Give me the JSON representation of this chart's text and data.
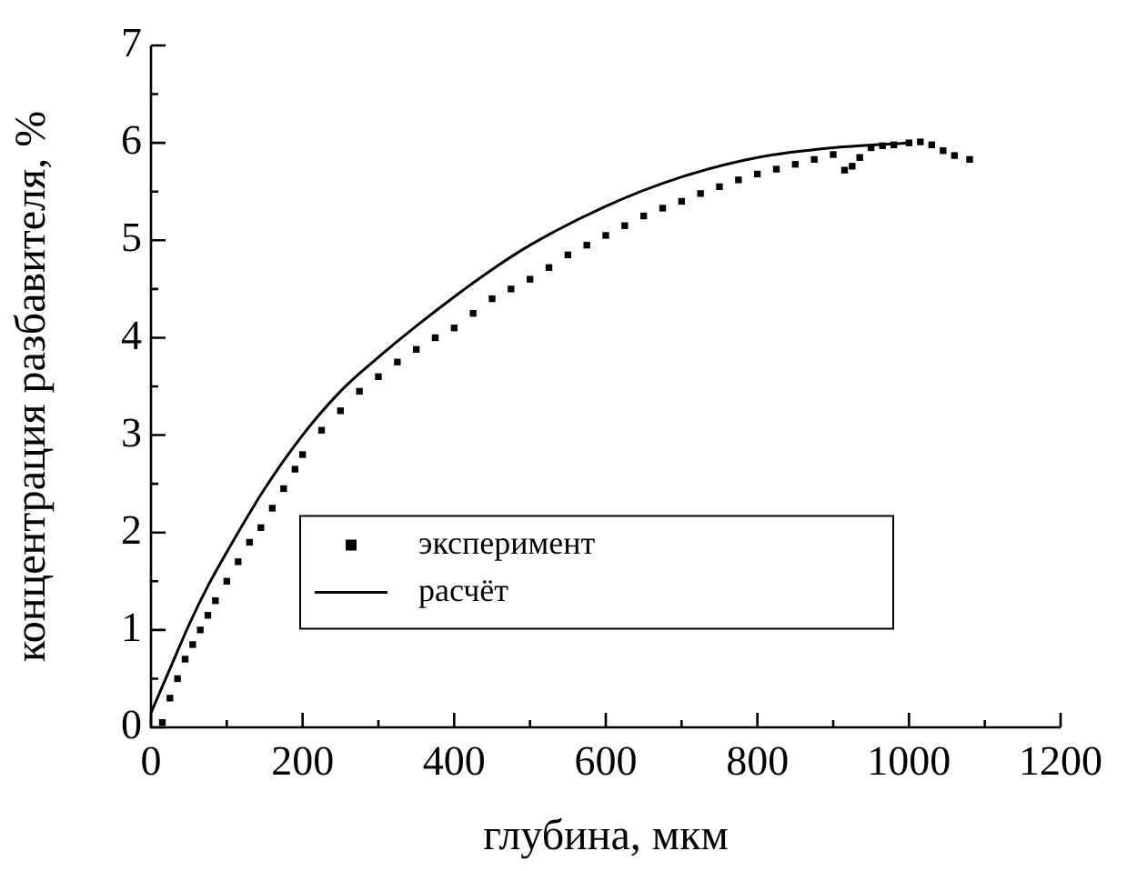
{
  "chart_data": {
    "type": "scatter",
    "xlabel": "глубина, мкм",
    "ylabel": "концентрация разбавителя, %",
    "xlim": [
      0,
      1200
    ],
    "ylim": [
      0,
      7
    ],
    "xticks": [
      0,
      200,
      400,
      600,
      800,
      1000,
      1200
    ],
    "yticks": [
      0,
      1,
      2,
      3,
      4,
      5,
      6,
      7
    ],
    "grid": false,
    "legend": "bottom",
    "series": [
      {
        "name": "эксперимент",
        "marker": "square",
        "color": "#000000",
        "x": [
          15,
          25,
          35,
          45,
          55,
          65,
          75,
          85,
          100,
          115,
          130,
          145,
          160,
          175,
          190,
          200,
          225,
          250,
          275,
          300,
          325,
          350,
          375,
          400,
          425,
          450,
          475,
          500,
          525,
          550,
          575,
          600,
          625,
          650,
          675,
          700,
          725,
          750,
          775,
          800,
          825,
          850,
          875,
          900,
          915,
          925,
          935,
          950,
          965,
          980,
          1000,
          1015,
          1030,
          1045,
          1060,
          1080
        ],
        "values": [
          0.05,
          0.3,
          0.5,
          0.7,
          0.85,
          1.0,
          1.15,
          1.3,
          1.5,
          1.7,
          1.9,
          2.05,
          2.25,
          2.45,
          2.65,
          2.8,
          3.05,
          3.25,
          3.45,
          3.6,
          3.75,
          3.88,
          4.0,
          4.1,
          4.25,
          4.4,
          4.5,
          4.6,
          4.72,
          4.85,
          4.95,
          5.05,
          5.15,
          5.25,
          5.33,
          5.4,
          5.48,
          5.55,
          5.62,
          5.68,
          5.73,
          5.78,
          5.83,
          5.88,
          5.72,
          5.76,
          5.85,
          5.95,
          5.97,
          5.98,
          6.0,
          6.01,
          5.98,
          5.92,
          5.87,
          5.83
        ]
      },
      {
        "name": "расчёт",
        "type": "line",
        "marker": "none",
        "line_style": "solid",
        "color": "#000000",
        "x": [
          0,
          25,
          50,
          75,
          100,
          150,
          200,
          250,
          300,
          350,
          400,
          450,
          500,
          600,
          700,
          800,
          900,
          1000
        ],
        "values": [
          0.15,
          0.6,
          1.05,
          1.45,
          1.8,
          2.45,
          3.0,
          3.45,
          3.8,
          4.12,
          4.42,
          4.7,
          4.95,
          5.35,
          5.65,
          5.85,
          5.95,
          6.0
        ]
      }
    ]
  }
}
